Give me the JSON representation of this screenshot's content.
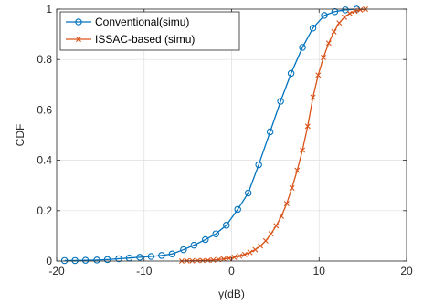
{
  "chart_data": {
    "type": "line",
    "title": "",
    "xlabel": "γ(dB)",
    "ylabel": "CDF",
    "xlim": [
      -20,
      20
    ],
    "ylim": [
      0,
      1
    ],
    "xticks": [
      -20,
      -10,
      0,
      10,
      20
    ],
    "yticks": [
      0,
      0.2,
      0.4,
      0.6,
      0.8,
      1
    ],
    "xtick_labels": [
      "-20",
      "-10",
      "0",
      "10",
      "20"
    ],
    "ytick_labels": [
      "0",
      "0.2",
      "0.4",
      "0.6",
      "0.8",
      "1"
    ],
    "grid": true,
    "legend_position": "top-left",
    "series": [
      {
        "name": "Conventional(simu)",
        "color": "#0072BD",
        "marker": "circle",
        "x": [
          -19.1,
          -17.9,
          -16.7,
          -15.4,
          -14.2,
          -12.9,
          -11.7,
          -10.5,
          -9.2,
          -8.0,
          -6.8,
          -5.5,
          -4.3,
          -3.0,
          -1.8,
          -0.6,
          0.7,
          1.9,
          3.1,
          4.4,
          5.6,
          6.8,
          8.1,
          9.3,
          10.6,
          11.8,
          13.0,
          14.3
        ],
        "y": [
          0.002,
          0.002,
          0.003,
          0.004,
          0.006,
          0.009,
          0.012,
          0.015,
          0.018,
          0.022,
          0.028,
          0.045,
          0.063,
          0.085,
          0.108,
          0.142,
          0.205,
          0.27,
          0.382,
          0.513,
          0.634,
          0.745,
          0.848,
          0.925,
          0.975,
          0.99,
          0.997,
          1.0
        ]
      },
      {
        "name": "ISSAC-based (simu)",
        "color": "#D95319",
        "marker": "x",
        "x": [
          -5.7,
          -5.1,
          -4.5,
          -3.9,
          -3.3,
          -2.7,
          -2.1,
          -1.5,
          -0.9,
          -0.3,
          0.3,
          0.9,
          1.5,
          2.1,
          2.7,
          3.3,
          3.9,
          4.5,
          5.1,
          5.7,
          6.3,
          6.9,
          7.5,
          8.1,
          8.7,
          9.3,
          9.9,
          10.5,
          11.1,
          11.7,
          12.3,
          12.9,
          13.5,
          14.1,
          14.7,
          15.3
        ],
        "y": [
          0.0,
          0.001,
          0.001,
          0.002,
          0.002,
          0.003,
          0.004,
          0.006,
          0.008,
          0.011,
          0.015,
          0.02,
          0.026,
          0.034,
          0.045,
          0.06,
          0.08,
          0.108,
          0.14,
          0.178,
          0.228,
          0.29,
          0.36,
          0.44,
          0.535,
          0.65,
          0.738,
          0.808,
          0.865,
          0.91,
          0.945,
          0.968,
          0.983,
          0.992,
          0.997,
          1.0
        ]
      }
    ]
  }
}
